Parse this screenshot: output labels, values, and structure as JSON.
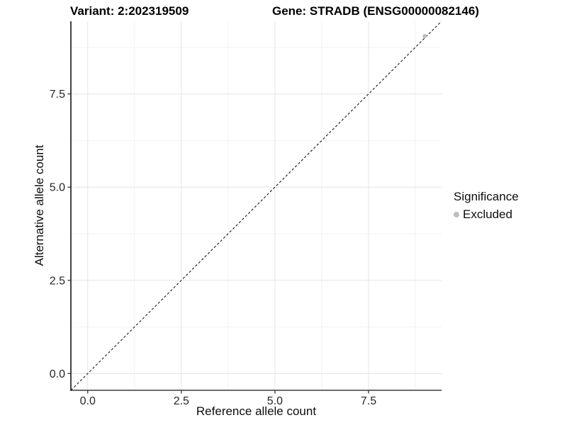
{
  "chart_data": {
    "type": "scatter",
    "titles": [
      "Variant: 2:202319509",
      "Gene: STRADB (ENSG00000082146)"
    ],
    "xlabel": "Reference allele count",
    "ylabel": "Alternative allele count",
    "xlim": [
      -0.45,
      9.45
    ],
    "ylim": [
      -0.45,
      9.45
    ],
    "x_ticks": [
      0.0,
      2.5,
      5.0,
      7.5
    ],
    "y_ticks": [
      0.0,
      2.5,
      5.0,
      7.5
    ],
    "x_tick_labels": [
      "0.0",
      "2.5",
      "5.0",
      "7.5"
    ],
    "y_tick_labels": [
      "0.0",
      "2.5",
      "5.0",
      "7.5"
    ],
    "x_minor_gridlines": [
      1.25,
      3.75,
      6.25,
      8.75
    ],
    "y_minor_gridlines": [
      1.25,
      3.75,
      6.25,
      8.75
    ],
    "grid": true,
    "legend_position": "right",
    "reference_line": {
      "type": "identity",
      "slope": 1,
      "intercept": 0,
      "style": "dashed",
      "color": "#1a1a1a"
    },
    "series": [
      {
        "name": "Excluded",
        "color": "#bebebe",
        "points": [
          {
            "x": 9.0,
            "y": 9.05
          }
        ]
      }
    ],
    "legend": {
      "title": "Significance",
      "entries": [
        {
          "label": "Excluded",
          "color": "#bebebe"
        }
      ]
    },
    "colors": {
      "grid_major": "#e5e5e5",
      "grid_minor": "#f2f2f2",
      "axis_line_left": "#141414",
      "axis_line_bottom": "#3d3d3d",
      "tick_mark": "#333333",
      "tick_label": "#262626"
    }
  }
}
